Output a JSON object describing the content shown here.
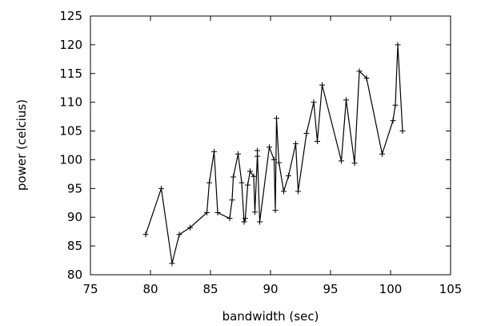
{
  "chart_data": {
    "type": "line",
    "xlabel": "bandwidth (sec)",
    "ylabel": "power (celcius)",
    "xlim": [
      75,
      105
    ],
    "ylim": [
      80,
      125
    ],
    "xticks": [
      75,
      80,
      85,
      90,
      95,
      100,
      105
    ],
    "yticks": [
      80,
      85,
      90,
      95,
      100,
      105,
      110,
      115,
      120,
      125
    ],
    "grid": false,
    "legend": "none",
    "marker": "plus",
    "line_color": "#000000",
    "series": [
      {
        "x": [
          79.6,
          80.9,
          81.8,
          82.4,
          83.3,
          84.7,
          84.9,
          85.3,
          85.6,
          86.6,
          86.8,
          86.9,
          87.3,
          87.6,
          87.8,
          87.9,
          88.1,
          88.3,
          88.6,
          88.7,
          88.9,
          88.9,
          89.1,
          89.9,
          90.3,
          90.4,
          90.5,
          90.7,
          91.1,
          91.5,
          92.1,
          92.3,
          93.0,
          93.6,
          93.9,
          94.3,
          95.9,
          96.3,
          97.0,
          97.4,
          98.0,
          99.3,
          100.2,
          100.4,
          100.6,
          101.0
        ],
        "y": [
          87,
          95,
          82,
          87,
          88.2,
          90.8,
          96,
          101.4,
          90.8,
          89.8,
          93,
          97,
          101,
          96,
          89.2,
          89.8,
          95.6,
          98,
          97.1,
          90.9,
          100.6,
          101.6,
          89.2,
          102.2,
          100,
          91.2,
          107.2,
          99.5,
          94.5,
          97.2,
          102.8,
          94.5,
          104.6,
          110,
          103.2,
          113,
          99.8,
          110.4,
          99.4,
          115.4,
          114.2,
          101,
          106.8,
          109.5,
          120,
          105
        ]
      }
    ]
  }
}
